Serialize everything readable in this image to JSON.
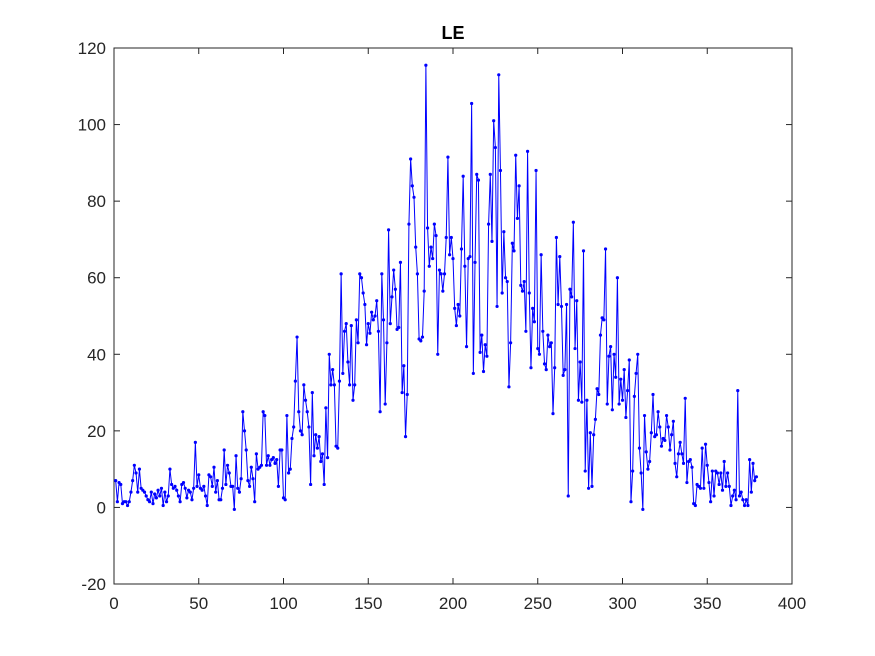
{
  "chart_data": {
    "type": "line",
    "title": "LE",
    "xlabel": "",
    "ylabel": "",
    "xlim": [
      0,
      400
    ],
    "ylim": [
      -20,
      120
    ],
    "x_ticks": [
      0,
      50,
      100,
      150,
      200,
      250,
      300,
      350,
      400
    ],
    "y_ticks": [
      -20,
      0,
      20,
      40,
      60,
      80,
      100,
      120
    ],
    "grid": false,
    "legend": "none",
    "series": [
      {
        "color": "#0000ff",
        "marker": "dot",
        "x_start": 1,
        "x_step": 1,
        "values": [
          7,
          1.5,
          6.5,
          6,
          1,
          1.5,
          1.5,
          0.5,
          1.5,
          4,
          7,
          11,
          9,
          4,
          10,
          5,
          4.5,
          4,
          3,
          2,
          1.5,
          4,
          1,
          3.5,
          2.5,
          4.5,
          3,
          5,
          0.5,
          4,
          1.5,
          3,
          10,
          6,
          5,
          5.5,
          4.5,
          3,
          1.5,
          6,
          6.5,
          5,
          2.5,
          4.5,
          4,
          2,
          5,
          17,
          5.5,
          8.5,
          5,
          4.5,
          5.5,
          3,
          0.5,
          8.5,
          8,
          5.5,
          10.5,
          4,
          7,
          2,
          2,
          5,
          15,
          6,
          11,
          9,
          5.5,
          5.5,
          -0.5,
          13.5,
          5,
          4,
          7.5,
          25,
          20,
          15,
          7,
          5.5,
          10.5,
          7.5,
          1.5,
          14,
          10,
          10.5,
          11,
          25,
          24,
          11,
          13.5,
          11,
          12.5,
          13,
          11.5,
          12.5,
          5.5,
          15,
          15,
          2.5,
          2,
          24,
          9,
          10,
          18,
          21,
          33,
          44.5,
          25,
          20,
          19,
          32,
          28,
          25,
          21,
          6,
          30,
          13.5,
          19,
          15.5,
          18.5,
          12,
          14,
          6,
          26,
          13,
          40,
          32,
          36,
          32,
          16,
          15.5,
          33,
          61,
          35,
          46,
          48,
          38,
          32,
          47.5,
          28,
          32,
          49,
          43,
          61,
          60,
          56,
          53,
          42.5,
          48,
          45.5,
          51,
          49,
          50,
          54,
          46,
          25,
          61,
          49,
          27,
          43,
          72.5,
          48,
          55,
          62,
          57,
          46.5,
          47,
          64,
          30,
          37,
          18.5,
          29.5,
          74,
          91,
          84,
          81,
          68,
          61,
          44,
          43.5,
          44.5,
          56.5,
          115.5,
          73,
          63,
          68,
          65,
          74,
          71,
          40,
          62,
          61,
          56.5,
          61,
          70.5,
          91.5,
          66,
          70.5,
          65,
          52,
          47.5,
          53,
          50,
          67.5,
          86.5,
          63,
          42,
          65,
          65.5,
          105.5,
          35,
          64,
          87,
          85.5,
          40.5,
          45,
          35.5,
          42.5,
          39.5,
          74,
          87,
          69.5,
          101,
          94,
          52.5,
          113,
          88,
          56,
          72,
          60,
          59,
          31.5,
          43,
          69,
          67,
          92,
          75.5,
          84,
          58,
          56.5,
          59,
          46,
          93,
          56,
          36.5,
          52,
          48.5,
          88,
          41.5,
          40,
          66,
          46,
          37.5,
          36,
          45,
          42,
          43,
          24.5,
          36.5,
          70.5,
          53,
          65.5,
          52.5,
          34.5,
          36,
          53,
          3,
          57,
          55,
          74.5,
          41.5,
          54,
          28,
          38,
          27.5,
          67,
          9.5,
          28,
          5,
          19.5,
          5.5,
          19,
          23,
          31,
          29.5,
          45,
          49.5,
          49,
          67.5,
          27,
          39.5,
          42,
          25.5,
          40,
          34,
          60,
          27,
          33.5,
          28,
          36,
          23.5,
          30.5,
          38.5,
          1.5,
          9.5,
          29,
          35,
          40,
          15.5,
          9,
          -0.5,
          24,
          14.5,
          10,
          12,
          19.5,
          29.5,
          18.5,
          19,
          25,
          21,
          16,
          18,
          17.5,
          24,
          21,
          15,
          19,
          22.5,
          11.5,
          8,
          14,
          17,
          14,
          11.5,
          28.5,
          6.5,
          12,
          12.5,
          10.5,
          1,
          0.5,
          6,
          5.5,
          5,
          15.5,
          5,
          16.5,
          11,
          6.5,
          1.5,
          9.5,
          3,
          9.5,
          9,
          6,
          9,
          4.5,
          12,
          5.5,
          9,
          5.5,
          0.5,
          3,
          4.5,
          2,
          30.5,
          3,
          4,
          2,
          0.5,
          2,
          0.5,
          12.5,
          4,
          11.5,
          7,
          8
        ]
      }
    ]
  }
}
